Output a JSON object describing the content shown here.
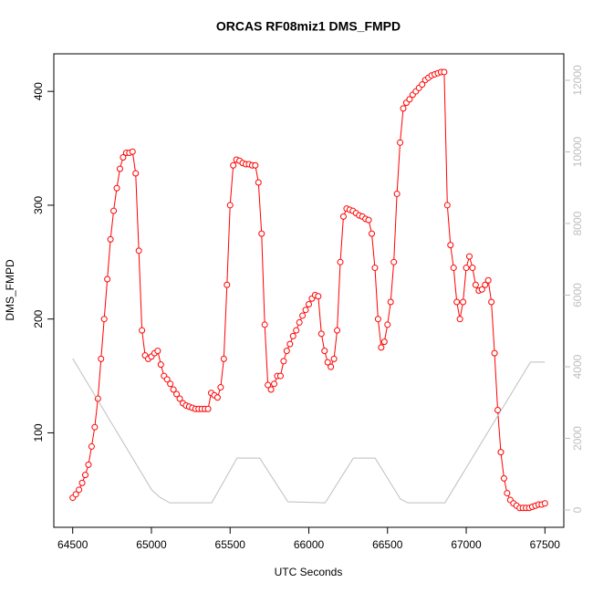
{
  "chart_data": {
    "type": "scatter-line",
    "title": "ORCAS RF08miz1 DMS_FMPD",
    "xlabel": "UTC Seconds",
    "ylabel": "DMS_FMPD",
    "xlim": [
      64380,
      67620
    ],
    "xticks": [
      64500,
      65000,
      65500,
      66000,
      66500,
      67000,
      67500
    ],
    "ylim": [
      17,
      433
    ],
    "yticks": [
      100,
      200,
      300,
      400
    ],
    "y2lim": [
      -484,
      12739
    ],
    "y2ticks": [
      0,
      2000,
      4000,
      6000,
      8000,
      10000,
      12000
    ],
    "y2color": "#bebebe",
    "series": [
      {
        "color": "#ff0000",
        "axis": "y",
        "x": [
          64500,
          64520,
          64540,
          64560,
          64580,
          64600,
          64620,
          64640,
          64660,
          64680,
          64700,
          64720,
          64740,
          64760,
          64780,
          64800,
          64820,
          64840,
          64860,
          64880,
          64900,
          64920,
          64940,
          64960,
          64980,
          65000,
          65020,
          65040,
          65060,
          65080,
          65100,
          65120,
          65140,
          65160,
          65180,
          65200,
          65220,
          65240,
          65260,
          65280,
          65300,
          65320,
          65340,
          65360,
          65380,
          65400,
          65420,
          65440,
          65460,
          65480,
          65500,
          65520,
          65540,
          65560,
          65580,
          65600,
          65620,
          65640,
          65660,
          65680,
          65700,
          65720,
          65740,
          65760,
          65780,
          65800,
          65820,
          65840,
          65860,
          65880,
          65900,
          65920,
          65940,
          65960,
          65980,
          66000,
          66020,
          66040,
          66060,
          66080,
          66100,
          66120,
          66140,
          66160,
          66180,
          66200,
          66220,
          66240,
          66260,
          66280,
          66300,
          66320,
          66340,
          66360,
          66380,
          66400,
          66420,
          66440,
          66460,
          66480,
          66500,
          66520,
          66540,
          66560,
          66580,
          66600,
          66620,
          66640,
          66660,
          66680,
          66700,
          66720,
          66740,
          66760,
          66780,
          66800,
          66820,
          66840,
          66860,
          66880,
          66900,
          66920,
          66940,
          66960,
          66980,
          67000,
          67020,
          67040,
          67060,
          67080,
          67100,
          67120,
          67140,
          67160,
          67180,
          67200,
          67220,
          67240,
          67260,
          67280,
          67300,
          67320,
          67340,
          67360,
          67380,
          67400,
          67420,
          67440,
          67460,
          67480,
          67500
        ],
        "values": [
          43,
          46,
          50,
          56,
          63,
          72,
          88,
          105,
          130,
          165,
          200,
          235,
          270,
          295,
          315,
          332,
          342,
          346,
          346,
          347,
          328,
          260,
          190,
          168,
          165,
          167,
          170,
          172,
          160,
          150,
          147,
          143,
          138,
          134,
          130,
          126,
          124,
          123,
          122,
          121,
          121,
          121,
          121,
          121,
          135,
          133,
          131,
          140,
          165,
          230,
          300,
          335,
          340,
          339,
          337,
          336,
          336,
          335,
          335,
          320,
          275,
          195,
          142,
          138,
          143,
          150,
          150,
          163,
          172,
          178,
          185,
          190,
          197,
          203,
          208,
          213,
          218,
          221,
          220,
          187,
          172,
          162,
          158,
          165,
          190,
          250,
          290,
          297,
          296,
          295,
          293,
          291,
          290,
          288,
          287,
          275,
          245,
          200,
          175,
          180,
          195,
          215,
          250,
          310,
          355,
          385,
          390,
          393,
          397,
          400,
          403,
          406,
          410,
          412,
          414,
          415,
          416,
          417,
          417,
          300,
          265,
          245,
          215,
          200,
          215,
          245,
          255,
          245,
          230,
          225,
          226,
          230,
          234,
          215,
          170,
          120,
          83,
          60,
          47,
          41,
          38,
          36,
          34,
          34,
          34,
          34,
          35,
          36,
          37,
          37,
          38
        ]
      },
      {
        "color": "#bebebe",
        "axis": "y2",
        "x": [
          64500,
          65002,
          65054,
          65117,
          65383,
          65544,
          65688,
          65867,
          66104,
          66283,
          66421,
          66583,
          66629,
          66865,
          67408,
          67500
        ],
        "values": [
          4229,
          560,
          355,
          200,
          200,
          1450,
          1450,
          230,
          200,
          1450,
          1450,
          300,
          200,
          200,
          4130,
          4130
        ]
      }
    ]
  }
}
